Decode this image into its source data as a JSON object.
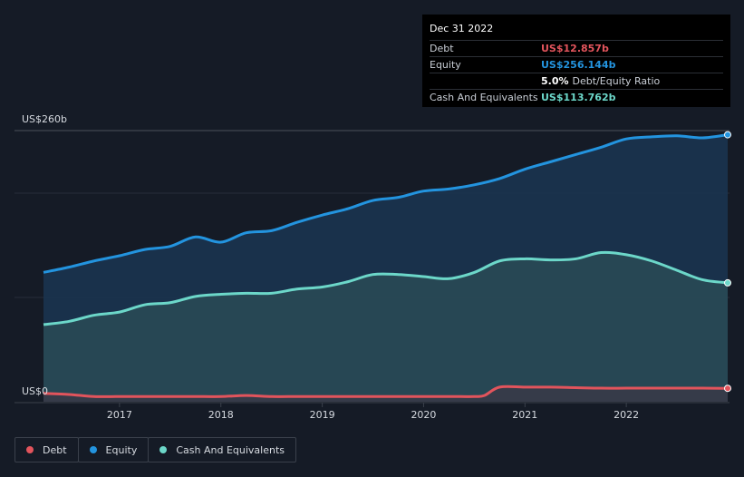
{
  "tooltip": {
    "date": "Dec 31 2022",
    "debt_label": "Debt",
    "debt_value": "US$12.857b",
    "equity_label": "Equity",
    "equity_value": "US$256.144b",
    "ratio_value": "5.0%",
    "ratio_label": "Debt/Equity Ratio",
    "cash_label": "Cash And Equivalents",
    "cash_value": "US$113.762b"
  },
  "legend": {
    "debt": "Debt",
    "equity": "Equity",
    "cash": "Cash And Equivalents"
  },
  "colors": {
    "debt": "#e2545c",
    "equity": "#2394df",
    "cash": "#6cd7c9",
    "background": "#151b26"
  },
  "chart_data": {
    "type": "area",
    "ylabels": {
      "top": "US$260b",
      "bottom": "US$0"
    },
    "xticks": [
      "2017",
      "2018",
      "2019",
      "2020",
      "2021",
      "2022"
    ],
    "xlim": [
      2016.25,
      2023.0
    ],
    "ylim": [
      0,
      260
    ],
    "series": [
      {
        "name": "Equity",
        "x": [
          2016.25,
          2016.5,
          2016.75,
          2017.0,
          2017.25,
          2017.5,
          2017.75,
          2018.0,
          2018.25,
          2018.5,
          2018.75,
          2019.0,
          2019.25,
          2019.5,
          2019.75,
          2020.0,
          2020.25,
          2020.5,
          2020.75,
          2021.0,
          2021.25,
          2021.5,
          2021.75,
          2022.0,
          2022.25,
          2022.5,
          2022.75,
          2023.0
        ],
        "values": [
          124,
          129,
          135,
          140,
          146,
          149,
          158,
          153,
          162,
          164,
          172,
          179,
          185,
          193,
          196,
          202,
          204,
          208,
          214,
          223,
          230,
          237,
          244,
          252,
          254,
          255,
          253,
          256
        ]
      },
      {
        "name": "Cash And Equivalents",
        "x": [
          2016.25,
          2016.5,
          2016.75,
          2017.0,
          2017.25,
          2017.5,
          2017.75,
          2018.0,
          2018.25,
          2018.5,
          2018.75,
          2019.0,
          2019.25,
          2019.5,
          2019.75,
          2020.0,
          2020.25,
          2020.5,
          2020.75,
          2021.0,
          2021.25,
          2021.5,
          2021.75,
          2022.0,
          2022.25,
          2022.5,
          2022.75,
          2023.0
        ],
        "values": [
          74,
          77,
          83,
          86,
          93,
          95,
          101,
          103,
          104,
          104,
          108,
          110,
          115,
          122,
          122,
          120,
          118,
          124,
          135,
          137,
          136,
          137,
          143,
          141,
          135,
          126,
          117,
          114
        ]
      },
      {
        "name": "Debt",
        "x": [
          2016.25,
          2016.5,
          2016.75,
          2017.0,
          2017.25,
          2017.5,
          2017.75,
          2018.0,
          2018.25,
          2018.5,
          2018.75,
          2019.0,
          2019.25,
          2019.5,
          2019.75,
          2020.0,
          2020.25,
          2020.5,
          2020.6,
          2020.75,
          2021.0,
          2021.25,
          2021.5,
          2021.75,
          2022.0,
          2022.25,
          2022.5,
          2022.75,
          2023.0
        ],
        "values": [
          8,
          7,
          5,
          5,
          5,
          5,
          5,
          5,
          6,
          5,
          5,
          5,
          5,
          5,
          5,
          5,
          5,
          5,
          6,
          14,
          14,
          14,
          13.5,
          13,
          13,
          13,
          13,
          13,
          12.857
        ]
      }
    ]
  }
}
